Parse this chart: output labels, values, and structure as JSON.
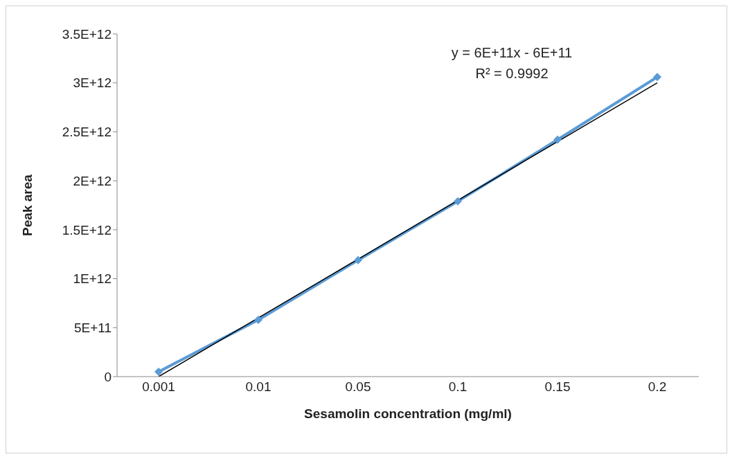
{
  "chart_data": {
    "type": "line",
    "xlabel": "Sesamolin concentration (mg/ml)",
    "ylabel": "Peak area",
    "categories": [
      "0.001",
      "0.01",
      "0.05",
      "0.1",
      "0.15",
      "0.2"
    ],
    "series": [
      {
        "type": "line",
        "color": "#5b9bd5",
        "marker": "diamond",
        "values": [
          50000000000,
          580000000000,
          1190000000000,
          1790000000000,
          2420000000000,
          3060000000000
        ]
      },
      {
        "type": "line",
        "color": "#000000",
        "marker": "none",
        "values": [
          0,
          600000000000,
          1200000000000,
          1800000000000,
          2400000000000,
          3000000000000
        ]
      }
    ],
    "ylim": [
      0,
      3500000000000
    ],
    "yticks": [
      0,
      {
        "value": 500000000000,
        "label": "5E+11"
      },
      {
        "value": 1000000000000,
        "label": "1E+12"
      },
      {
        "value": 1500000000000,
        "label": "1.5E+12"
      },
      {
        "value": 2000000000000,
        "label": "2E+12"
      },
      {
        "value": 2500000000000,
        "label": "2.5E+12"
      },
      {
        "value": 3000000000000,
        "label": "3E+12"
      },
      {
        "value": 3500000000000,
        "label": "3.5E+12"
      }
    ],
    "annotations": [
      "y = 6E+11x - 6E+11",
      "R² = 0.9992"
    ],
    "grid": false,
    "legend": false
  }
}
